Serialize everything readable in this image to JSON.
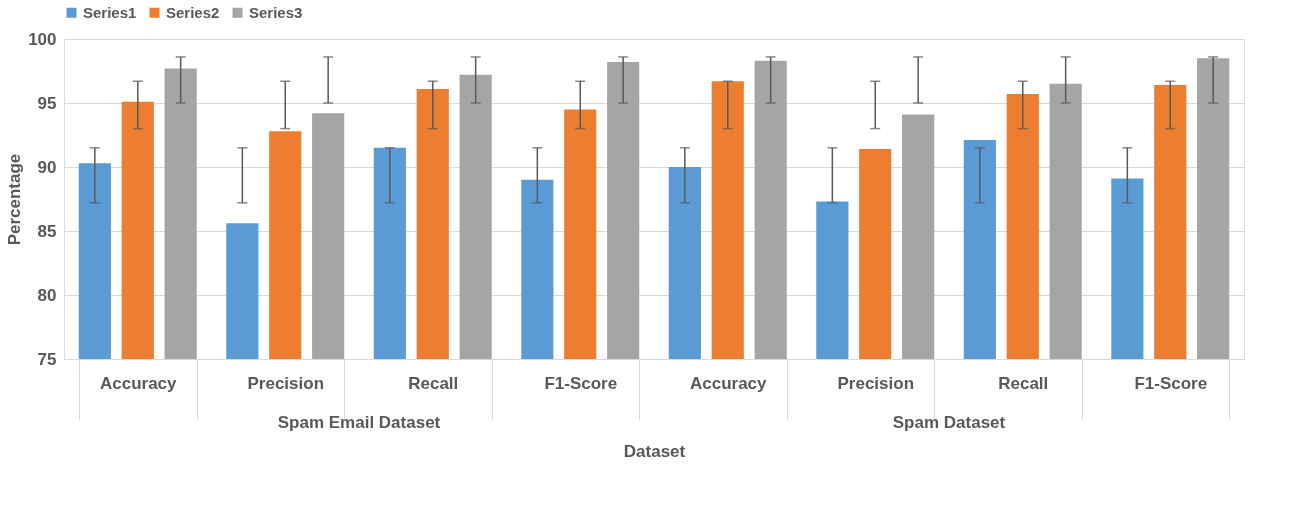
{
  "chart_data": {
    "type": "bar",
    "xlabel": "Dataset",
    "ylabel": "Percentage",
    "categories": [
      "Accuracy",
      "Precision",
      "Recall",
      "F1-Score",
      "Accuracy",
      "Precision",
      "Recall",
      "F1-Score"
    ],
    "annotations": [
      "Spam Email Dataset",
      "Spam Dataset"
    ],
    "series": [
      {
        "name": "Series1",
        "color": "#5b9bd5",
        "values": [
          90.3,
          85.6,
          91.5,
          89.0,
          90.0,
          87.3,
          92.1,
          89.1
        ],
        "errors": [
          [
            87.2,
            91.5
          ],
          [
            87.2,
            91.5
          ],
          [
            87.2,
            91.5
          ],
          [
            87.2,
            91.5
          ],
          [
            87.2,
            91.5
          ],
          [
            87.2,
            91.5
          ],
          [
            87.2,
            91.5
          ],
          [
            87.2,
            91.5
          ]
        ]
      },
      {
        "name": "Series2",
        "color": "#ed7d31",
        "values": [
          95.1,
          92.8,
          96.1,
          94.5,
          96.7,
          91.4,
          95.7,
          96.4
        ],
        "errors": [
          [
            93.0,
            96.7
          ],
          [
            93.0,
            96.7
          ],
          [
            93.0,
            96.7
          ],
          [
            93.0,
            96.7
          ],
          [
            93.0,
            96.7
          ],
          [
            93.0,
            96.7
          ],
          [
            93.0,
            96.7
          ],
          [
            93.0,
            96.7
          ]
        ]
      },
      {
        "name": "Series3",
        "color": "#a5a5a5",
        "values": [
          97.7,
          94.2,
          97.2,
          98.2,
          98.3,
          94.1,
          96.5,
          98.5
        ],
        "errors": [
          [
            95.0,
            98.6
          ],
          [
            95.0,
            98.6
          ],
          [
            95.0,
            98.6
          ],
          [
            95.0,
            98.6
          ],
          [
            95.0,
            98.6
          ],
          [
            95.0,
            98.6
          ],
          [
            95.0,
            98.6
          ],
          [
            95.0,
            98.6
          ]
        ]
      }
    ],
    "ylim": [
      75,
      100
    ],
    "yticks": [
      75,
      80,
      85,
      90,
      95,
      100
    ],
    "grid": "y",
    "legend": "top"
  }
}
